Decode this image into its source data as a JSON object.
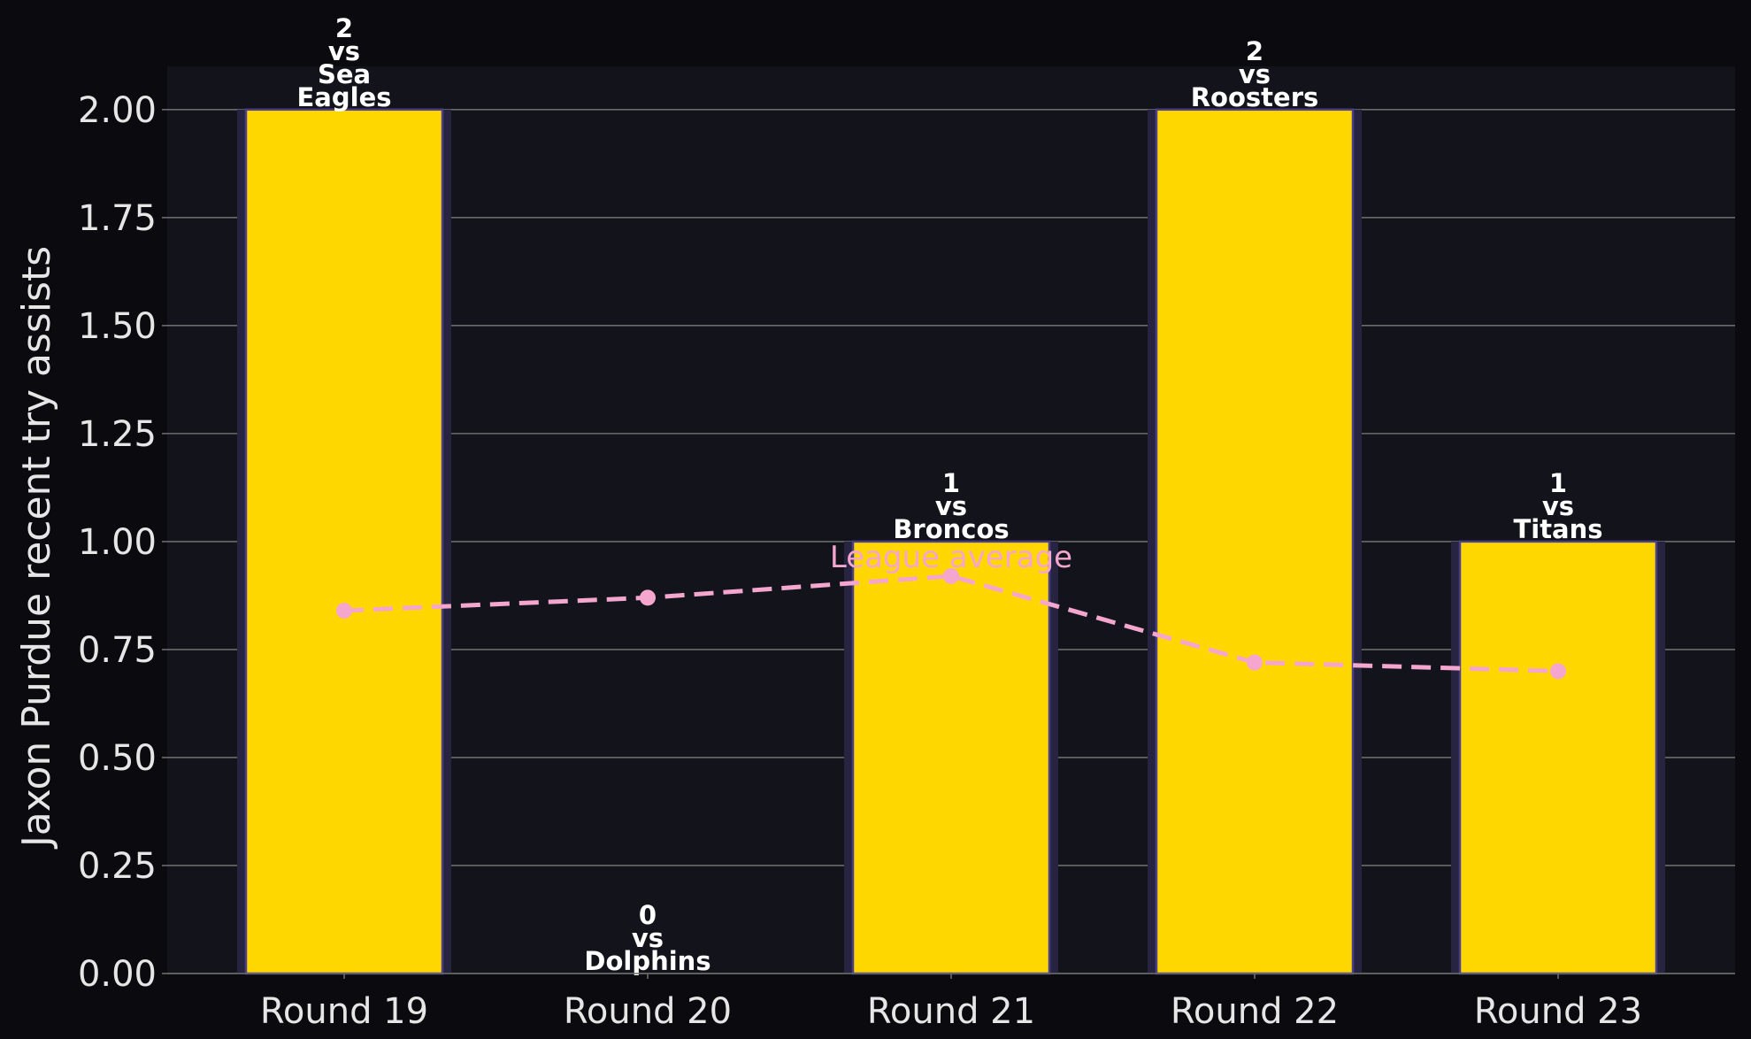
{
  "chart_data": {
    "type": "bar",
    "title": "",
    "xlabel": "",
    "ylabel": "Jaxon Purdue recent try assists",
    "categories": [
      "Round 19",
      "Round 20",
      "Round 21",
      "Round 22",
      "Round 23"
    ],
    "values": [
      2,
      0,
      1,
      2,
      1
    ],
    "opponents": [
      "Sea Eagles",
      "Dolphins",
      "Broncos",
      "Roosters",
      "Titans"
    ],
    "bar_annotations": [
      [
        "2",
        "vs",
        "Sea",
        "Eagles"
      ],
      [
        "0",
        "vs",
        "Dolphins"
      ],
      [
        "1",
        "vs",
        "Broncos"
      ],
      [
        "2",
        "vs",
        "Roosters"
      ],
      [
        "1",
        "vs",
        "Titans"
      ]
    ],
    "league_average": {
      "label": "League average",
      "values": [
        0.84,
        0.87,
        0.92,
        0.72,
        0.7
      ],
      "label_at_index": 2
    },
    "ylim": [
      0,
      2.1
    ],
    "yticks": [
      "0.00",
      "0.25",
      "0.50",
      "0.75",
      "1.00",
      "1.25",
      "1.50",
      "1.75",
      "2.00"
    ],
    "grid": true,
    "colors": {
      "figure_background": "#0b0b0f",
      "plot_background": "#13141b",
      "bar_fill": "#ffd700",
      "bar_edge": "#4b3f8c",
      "bar_glow": "#262440",
      "average_line": "#f4a6cf",
      "grid": "#6b6b6b",
      "text": "#e6e6e6",
      "annotation": "#ffffff"
    }
  }
}
